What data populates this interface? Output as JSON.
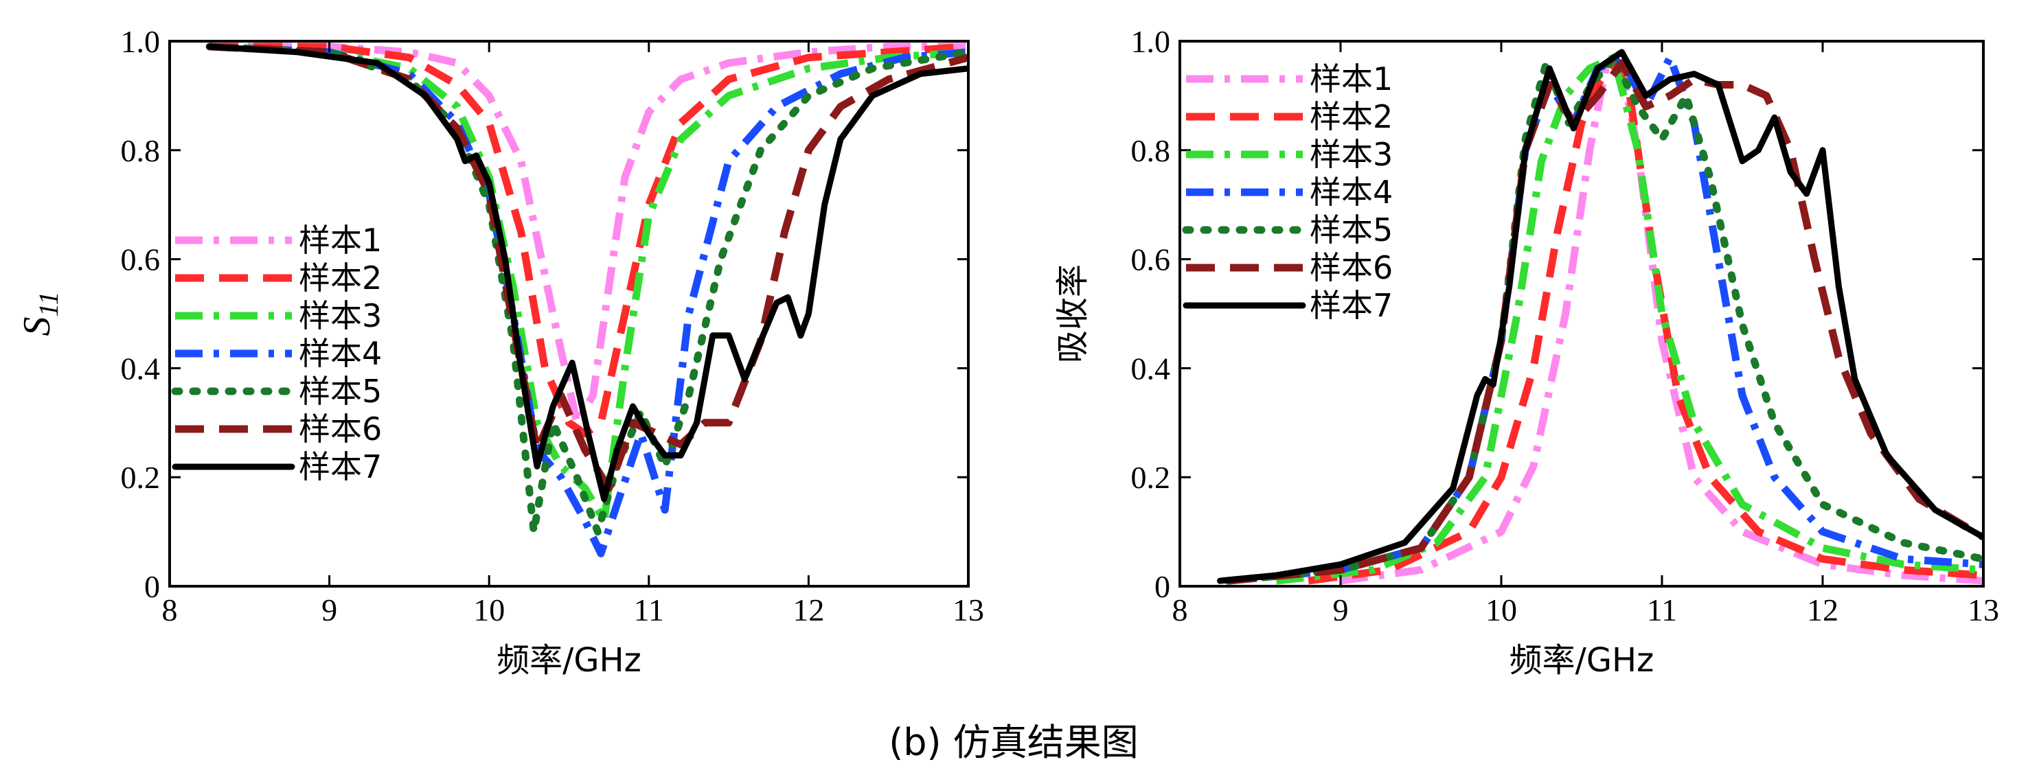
{
  "caption": "(b) 仿真结果图",
  "chart_data": [
    {
      "type": "line",
      "xlabel": "频率/GHz",
      "ylabel": "S11",
      "xlim": [
        8,
        13
      ],
      "ylim": [
        0,
        1
      ],
      "xticks": [
        "8",
        "9",
        "10",
        "11",
        "12",
        "13"
      ],
      "yticks": [
        "0",
        "0.2",
        "0.4",
        "0.6",
        "0.8",
        "1.0"
      ],
      "legend_position": "left",
      "series": [
        {
          "name": "样本1",
          "color": "#ff88ee",
          "dash": "dashdot",
          "x": [
            8.25,
            9.0,
            9.5,
            9.8,
            10.0,
            10.2,
            10.4,
            10.55,
            10.65,
            10.75,
            10.85,
            11.0,
            11.2,
            11.5,
            12.0,
            12.5,
            13.0
          ],
          "y": [
            0.99,
            0.99,
            0.98,
            0.96,
            0.9,
            0.78,
            0.5,
            0.3,
            0.35,
            0.55,
            0.75,
            0.87,
            0.93,
            0.96,
            0.98,
            0.99,
            0.99
          ]
        },
        {
          "name": "样本2",
          "color": "#ff2a2a",
          "dash": "dash",
          "x": [
            8.25,
            9.0,
            9.5,
            9.8,
            10.0,
            10.2,
            10.35,
            10.5,
            10.6,
            10.7,
            10.85,
            11.0,
            11.2,
            11.5,
            12.0,
            12.5,
            13.0
          ],
          "y": [
            0.99,
            0.99,
            0.97,
            0.92,
            0.85,
            0.65,
            0.4,
            0.3,
            0.28,
            0.3,
            0.5,
            0.7,
            0.85,
            0.93,
            0.97,
            0.98,
            0.99
          ]
        },
        {
          "name": "样本3",
          "color": "#33dd33",
          "dash": "dashdot",
          "x": [
            8.25,
            9.0,
            9.5,
            9.8,
            10.0,
            10.15,
            10.3,
            10.45,
            10.6,
            10.72,
            10.85,
            11.0,
            11.2,
            11.5,
            12.0,
            12.5,
            13.0
          ],
          "y": [
            0.99,
            0.98,
            0.95,
            0.88,
            0.75,
            0.55,
            0.3,
            0.22,
            0.18,
            0.12,
            0.4,
            0.68,
            0.82,
            0.9,
            0.95,
            0.97,
            0.98
          ]
        },
        {
          "name": "样本4",
          "color": "#1a4cff",
          "dash": "dashdot",
          "x": [
            8.25,
            9.0,
            9.5,
            9.8,
            10.0,
            10.15,
            10.3,
            10.45,
            10.6,
            10.7,
            10.8,
            10.95,
            11.1,
            11.25,
            11.5,
            11.8,
            12.2,
            12.6,
            13.0
          ],
          "y": [
            0.99,
            0.98,
            0.94,
            0.85,
            0.72,
            0.5,
            0.25,
            0.2,
            0.12,
            0.06,
            0.15,
            0.28,
            0.14,
            0.5,
            0.78,
            0.88,
            0.94,
            0.97,
            0.98
          ]
        },
        {
          "name": "样本5",
          "color": "#1a7a2a",
          "dash": "dotted",
          "x": [
            8.25,
            9.0,
            9.5,
            9.8,
            10.0,
            10.15,
            10.28,
            10.4,
            10.55,
            10.68,
            10.8,
            10.95,
            11.1,
            11.25,
            11.45,
            11.7,
            12.0,
            12.4,
            13.0
          ],
          "y": [
            0.99,
            0.98,
            0.93,
            0.84,
            0.7,
            0.45,
            0.1,
            0.3,
            0.2,
            0.1,
            0.22,
            0.32,
            0.22,
            0.35,
            0.6,
            0.8,
            0.9,
            0.95,
            0.98
          ]
        },
        {
          "name": "样本6",
          "color": "#8b1a1a",
          "dash": "dash",
          "x": [
            8.25,
            9.0,
            9.5,
            9.8,
            10.0,
            10.15,
            10.3,
            10.45,
            10.6,
            10.75,
            10.9,
            11.05,
            11.2,
            11.35,
            11.5,
            11.7,
            11.85,
            12.0,
            12.2,
            12.5,
            13.0
          ],
          "y": [
            0.99,
            0.98,
            0.93,
            0.84,
            0.72,
            0.48,
            0.25,
            0.35,
            0.25,
            0.18,
            0.3,
            0.28,
            0.26,
            0.3,
            0.3,
            0.45,
            0.65,
            0.8,
            0.88,
            0.93,
            0.97
          ]
        },
        {
          "name": "样本7",
          "color": "#000000",
          "dash": "solid",
          "x": [
            8.25,
            8.8,
            9.3,
            9.6,
            9.8,
            9.85,
            9.92,
            10.0,
            10.1,
            10.2,
            10.3,
            10.4,
            10.52,
            10.62,
            10.72,
            10.8,
            10.9,
            11.0,
            11.1,
            11.2,
            11.3,
            11.4,
            11.5,
            11.6,
            11.7,
            11.8,
            11.87,
            11.95,
            12.0,
            12.1,
            12.2,
            12.4,
            12.7,
            13.0
          ],
          "y": [
            0.99,
            0.98,
            0.96,
            0.9,
            0.82,
            0.78,
            0.79,
            0.74,
            0.6,
            0.4,
            0.22,
            0.33,
            0.41,
            0.28,
            0.16,
            0.25,
            0.33,
            0.28,
            0.24,
            0.24,
            0.3,
            0.46,
            0.46,
            0.38,
            0.45,
            0.52,
            0.53,
            0.46,
            0.5,
            0.7,
            0.82,
            0.9,
            0.94,
            0.95
          ]
        }
      ]
    },
    {
      "type": "line",
      "xlabel": "频率/GHz",
      "ylabel": "吸收率",
      "xlim": [
        8,
        13
      ],
      "ylim": [
        0,
        1
      ],
      "xticks": [
        "8",
        "9",
        "10",
        "11",
        "12",
        "13"
      ],
      "yticks": [
        "0",
        "0.2",
        "0.4",
        "0.6",
        "0.8",
        "1.0"
      ],
      "legend_position": "top-left",
      "series": [
        {
          "name": "样本1",
          "color": "#ff88ee",
          "dash": "dashdot",
          "x": [
            9.0,
            9.5,
            10.0,
            10.2,
            10.4,
            10.55,
            10.65,
            10.75,
            10.85,
            11.0,
            11.2,
            11.5,
            12.0,
            12.5,
            13.0
          ],
          "y": [
            0.01,
            0.03,
            0.1,
            0.22,
            0.5,
            0.8,
            0.95,
            0.95,
            0.8,
            0.45,
            0.2,
            0.1,
            0.04,
            0.02,
            0.01
          ]
        },
        {
          "name": "样本2",
          "color": "#ff2a2a",
          "dash": "dash",
          "x": [
            8.8,
            9.3,
            9.8,
            10.0,
            10.2,
            10.35,
            10.5,
            10.6,
            10.7,
            10.8,
            10.95,
            11.1,
            11.3,
            11.6,
            12.0,
            12.5,
            13.0
          ],
          "y": [
            0.01,
            0.03,
            0.1,
            0.2,
            0.4,
            0.65,
            0.85,
            0.92,
            0.96,
            0.9,
            0.6,
            0.35,
            0.2,
            0.1,
            0.05,
            0.03,
            0.02
          ]
        },
        {
          "name": "样本3",
          "color": "#33dd33",
          "dash": "dashdot",
          "x": [
            8.6,
            9.2,
            9.6,
            9.9,
            10.1,
            10.25,
            10.4,
            10.55,
            10.7,
            10.85,
            11.0,
            11.2,
            11.5,
            12.0,
            12.5,
            13.0
          ],
          "y": [
            0.01,
            0.03,
            0.08,
            0.2,
            0.5,
            0.78,
            0.9,
            0.95,
            0.97,
            0.8,
            0.5,
            0.3,
            0.15,
            0.07,
            0.04,
            0.03
          ]
        },
        {
          "name": "样本4",
          "color": "#1a4cff",
          "dash": "dashdot",
          "x": [
            8.3,
            9.0,
            9.5,
            9.8,
            10.0,
            10.15,
            10.3,
            10.45,
            10.6,
            10.75,
            10.9,
            11.05,
            11.2,
            11.35,
            11.5,
            11.7,
            12.0,
            12.5,
            13.0
          ],
          "y": [
            0.01,
            0.03,
            0.07,
            0.2,
            0.45,
            0.8,
            0.92,
            0.85,
            0.95,
            0.97,
            0.88,
            0.97,
            0.85,
            0.6,
            0.35,
            0.2,
            0.1,
            0.05,
            0.04
          ]
        },
        {
          "name": "样本5",
          "color": "#1a7a2a",
          "dash": "dotted",
          "x": [
            8.3,
            9.0,
            9.5,
            9.8,
            10.0,
            10.15,
            10.28,
            10.42,
            10.56,
            10.7,
            10.85,
            11.0,
            11.15,
            11.3,
            11.5,
            11.7,
            12.0,
            12.5,
            13.0
          ],
          "y": [
            0.01,
            0.03,
            0.07,
            0.2,
            0.45,
            0.82,
            0.96,
            0.85,
            0.92,
            0.97,
            0.88,
            0.82,
            0.9,
            0.75,
            0.48,
            0.3,
            0.15,
            0.08,
            0.05
          ]
        },
        {
          "name": "样本6",
          "color": "#8b1a1a",
          "dash": "dash",
          "x": [
            8.3,
            9.0,
            9.5,
            9.8,
            10.0,
            10.15,
            10.3,
            10.45,
            10.6,
            10.75,
            10.9,
            11.05,
            11.2,
            11.35,
            11.5,
            11.65,
            11.8,
            11.95,
            12.1,
            12.3,
            12.6,
            13.0
          ],
          "y": [
            0.01,
            0.03,
            0.07,
            0.2,
            0.45,
            0.8,
            0.92,
            0.85,
            0.9,
            0.96,
            0.88,
            0.9,
            0.93,
            0.92,
            0.92,
            0.9,
            0.8,
            0.6,
            0.42,
            0.28,
            0.16,
            0.09
          ]
        },
        {
          "name": "样本7",
          "color": "#000000",
          "dash": "solid",
          "x": [
            8.25,
            8.6,
            9.0,
            9.4,
            9.7,
            9.85,
            9.9,
            9.95,
            10.05,
            10.15,
            10.3,
            10.45,
            10.6,
            10.75,
            10.9,
            11.05,
            11.2,
            11.35,
            11.5,
            11.6,
            11.7,
            11.8,
            11.9,
            12.0,
            12.1,
            12.2,
            12.4,
            12.7,
            13.0
          ],
          "y": [
            0.01,
            0.02,
            0.04,
            0.08,
            0.18,
            0.35,
            0.38,
            0.37,
            0.55,
            0.8,
            0.95,
            0.84,
            0.95,
            0.98,
            0.9,
            0.93,
            0.94,
            0.92,
            0.78,
            0.8,
            0.86,
            0.76,
            0.72,
            0.8,
            0.55,
            0.38,
            0.24,
            0.14,
            0.09
          ]
        }
      ]
    }
  ]
}
